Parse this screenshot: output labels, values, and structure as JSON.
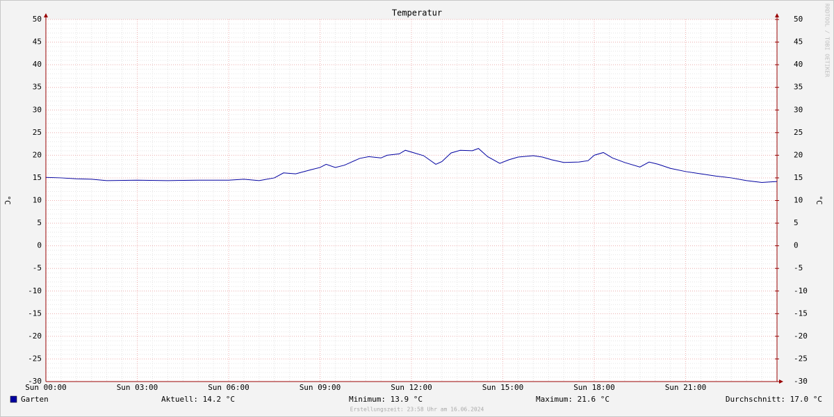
{
  "chart_data": {
    "type": "line",
    "title": "Temperatur",
    "ylabel": "°C",
    "y2label": "°C",
    "watermark": "RRDTOOL / TOBI OETIKER",
    "footer": "Erstellungszeit: 23:58 Uhr am 16.06.2024",
    "stats": [
      "Aktuell: 14.2 °C",
      "Minimum: 13.9 °C",
      "Maximum: 21.6 °C",
      "Durchschnitt: 17.0 °C"
    ],
    "xlim": [
      0,
      24
    ],
    "xticks": [
      {
        "value": 0,
        "label": "Sun 00:00"
      },
      {
        "value": 3,
        "label": "Sun 03:00"
      },
      {
        "value": 6,
        "label": "Sun 06:00"
      },
      {
        "value": 9,
        "label": "Sun 09:00"
      },
      {
        "value": 12,
        "label": "Sun 12:00"
      },
      {
        "value": 15,
        "label": "Sun 15:00"
      },
      {
        "value": 18,
        "label": "Sun 18:00"
      },
      {
        "value": 21,
        "label": "Sun 21:00"
      }
    ],
    "ylim": [
      -30,
      50
    ],
    "yticks": [
      -30,
      -25,
      -20,
      -15,
      -10,
      -5,
      0,
      5,
      10,
      15,
      20,
      25,
      30,
      35,
      40,
      45,
      50
    ],
    "y2lim": [
      -30,
      50
    ],
    "y2ticks": [
      -30,
      -25,
      -20,
      -15,
      -10,
      -5,
      0,
      5,
      10,
      15,
      20,
      25,
      30,
      35,
      40,
      45,
      50
    ],
    "grid": true,
    "legend": "bottom-left",
    "x": [
      0,
      0.5,
      1,
      1.5,
      2,
      3,
      4,
      5,
      6,
      6.5,
      7,
      7.5,
      7.8,
      8.2,
      8.7,
      9,
      9.2,
      9.5,
      9.8,
      10,
      10.3,
      10.6,
      11,
      11.2,
      11.6,
      11.8,
      12.1,
      12.4,
      12.8,
      13,
      13.3,
      13.6,
      14,
      14.2,
      14.5,
      14.9,
      15.2,
      15.5,
      16,
      16.3,
      16.6,
      17,
      17.5,
      17.8,
      18,
      18.3,
      18.6,
      19,
      19.5,
      19.8,
      20.1,
      20.5,
      21,
      21.5,
      22,
      22.5,
      23,
      23.5,
      24
    ],
    "series": [
      {
        "name": "Garten",
        "color": "#0000a0",
        "values": [
          15.1,
          15.0,
          14.8,
          14.7,
          14.4,
          14.5,
          14.4,
          14.5,
          14.5,
          14.7,
          14.4,
          15.0,
          16.1,
          15.9,
          16.8,
          17.3,
          18.0,
          17.3,
          17.8,
          18.4,
          19.3,
          19.7,
          19.4,
          20.0,
          20.3,
          21.1,
          20.5,
          19.9,
          18.0,
          18.6,
          20.5,
          21.1,
          21.0,
          21.5,
          19.7,
          18.2,
          19.0,
          19.6,
          19.9,
          19.6,
          19.0,
          18.4,
          18.5,
          18.8,
          20.0,
          20.6,
          19.4,
          18.4,
          17.4,
          18.5,
          18.0,
          17.1,
          16.4,
          15.9,
          15.4,
          15.0,
          14.4,
          14.0,
          14.2
        ]
      }
    ]
  }
}
